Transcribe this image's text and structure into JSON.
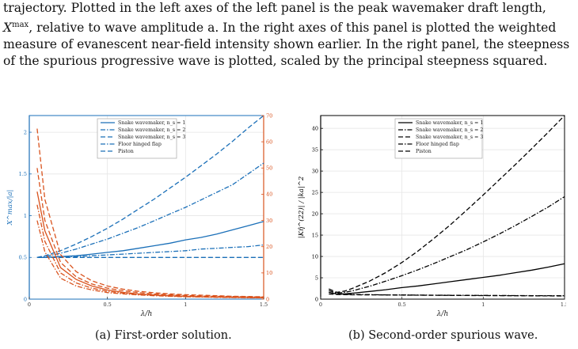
{
  "paragraph": {
    "line1": "trajectory. Plotted in the left axes of the left panel is the peak wavemaker draft length,",
    "line2": "X^max, relative to wave amplitude a. In the right axes of this panel is plotted the weighted",
    "line3": "measure of evanescent near-field intensity shown earlier. In the right panel, the steepness",
    "line4": "of the spurious progressive wave is plotted, scaled by the principal steepness squared."
  },
  "captions": {
    "a": "(a) First-order solution.",
    "b": "(b) Second-order spurious wave."
  },
  "colors": {
    "blue": "#1a6fb8",
    "orange": "#d9531e",
    "black": "#000000"
  },
  "chart_data": [
    {
      "type": "line",
      "xlabel": "λ/h",
      "ylabel_left": "X^max/|a|",
      "ylabel_right": "Σ_{j≥0} |Σ_i η̂_{ji}^{(1)}/k_{j1}| / |a/k|",
      "xlim": [
        0,
        1.5
      ],
      "ylim_left": [
        0,
        2.2
      ],
      "ylim_right": [
        0,
        70
      ],
      "x_ticks": [
        "0",
        "0.5",
        "1",
        "1.5"
      ],
      "y_ticks_left": [
        "0",
        "0.5",
        "1",
        "1.5",
        "2"
      ],
      "y_ticks_right": [
        "0",
        "10",
        "20",
        "30",
        "40",
        "50",
        "60",
        "70"
      ],
      "grid": true,
      "legend_position": "top-right",
      "legend": [
        "Snake wavemaker, n_s = 1",
        "Snake wavemaker, n_s = 2",
        "Snake wavemaker, n_s = 3",
        "Floor hinged flap",
        "Piston"
      ],
      "x": [
        0.05,
        0.1,
        0.2,
        0.3,
        0.4,
        0.5,
        0.6,
        0.7,
        0.8,
        0.9,
        1.0,
        1.1,
        1.2,
        1.3,
        1.4,
        1.5
      ],
      "series": [
        {
          "name": "Snake wavemaker, n_s = 1",
          "axis": "left",
          "dash": "solid",
          "values": [
            0.5,
            0.5,
            0.51,
            0.52,
            0.54,
            0.56,
            0.58,
            0.61,
            0.64,
            0.67,
            0.71,
            0.74,
            0.78,
            0.83,
            0.88,
            0.93
          ]
        },
        {
          "name": "Snake wavemaker, n_s = 2",
          "axis": "left",
          "dash": "dashdot",
          "values": [
            0.5,
            0.51,
            0.55,
            0.6,
            0.66,
            0.72,
            0.79,
            0.86,
            0.94,
            1.02,
            1.1,
            1.19,
            1.28,
            1.37,
            1.5,
            1.63
          ]
        },
        {
          "name": "Snake wavemaker, n_s = 3",
          "axis": "left",
          "dash": "dashed",
          "values": [
            0.5,
            0.52,
            0.58,
            0.66,
            0.75,
            0.85,
            0.96,
            1.08,
            1.2,
            1.33,
            1.46,
            1.6,
            1.74,
            1.89,
            2.05,
            2.2
          ]
        },
        {
          "name": "Floor hinged flap",
          "axis": "left",
          "dash": "dashdot",
          "values": [
            0.5,
            0.5,
            0.51,
            0.51,
            0.52,
            0.53,
            0.54,
            0.55,
            0.56,
            0.57,
            0.58,
            0.6,
            0.61,
            0.62,
            0.63,
            0.65
          ]
        },
        {
          "name": "Piston",
          "axis": "left",
          "dash": "dashed",
          "values": [
            0.5,
            0.5,
            0.5,
            0.5,
            0.5,
            0.5,
            0.5,
            0.5,
            0.5,
            0.5,
            0.5,
            0.5,
            0.5,
            0.5,
            0.5,
            0.5
          ]
        },
        {
          "name": "",
          "axis": "right",
          "dash": "solid",
          "values": [
            41,
            26,
            12,
            7.5,
            5,
            3.5,
            2.6,
            2,
            1.6,
            1.3,
            1.1,
            0.9,
            0.8,
            0.7,
            0.6,
            0.5
          ]
        },
        {
          "name": "",
          "axis": "right",
          "dash": "dashdot",
          "values": [
            30,
            18,
            8,
            5,
            3.5,
            2.5,
            2,
            1.6,
            1.3,
            1.1,
            0.9,
            0.8,
            0.7,
            0.6,
            0.5,
            0.5
          ]
        },
        {
          "name": "",
          "axis": "right",
          "dash": "dashed",
          "values": [
            65,
            38,
            17,
            10.5,
            7,
            5,
            3.8,
            3,
            2.4,
            2,
            1.7,
            1.5,
            1.3,
            1.1,
            1,
            0.9
          ]
        },
        {
          "name": "",
          "axis": "right",
          "dash": "dashdot",
          "values": [
            36,
            22,
            10,
            6.2,
            4.2,
            3,
            2.3,
            1.8,
            1.5,
            1.2,
            1.0,
            0.9,
            0.8,
            0.7,
            0.6,
            0.5
          ]
        },
        {
          "name": "",
          "axis": "right",
          "dash": "dashed",
          "values": [
            50,
            30,
            14,
            8.5,
            5.8,
            4.2,
            3.2,
            2.5,
            2,
            1.7,
            1.4,
            1.2,
            1.1,
            1,
            0.9,
            0.8
          ]
        }
      ]
    },
    {
      "type": "line",
      "xlabel": "λ/h",
      "ylabel": "|Kη̂^(22)| / |ka|^2",
      "xlim": [
        0,
        1.5
      ],
      "ylim": [
        0,
        43
      ],
      "x_ticks": [
        "0",
        "0.5",
        "1",
        "1.5"
      ],
      "y_ticks": [
        "0",
        "5",
        "10",
        "15",
        "20",
        "25",
        "30",
        "35",
        "40"
      ],
      "grid": true,
      "legend_position": "top-right",
      "legend": [
        "Snake wavemaker, n_s = 1",
        "Snake wavemaker, n_s = 2",
        "Snake wavemaker, n_s = 3",
        "Floor hinged flap",
        "Piston"
      ],
      "x": [
        0.05,
        0.1,
        0.15,
        0.2,
        0.3,
        0.4,
        0.5,
        0.6,
        0.7,
        0.8,
        0.9,
        1.0,
        1.1,
        1.2,
        1.3,
        1.4,
        1.5
      ],
      "series": [
        {
          "name": "Snake wavemaker, n_s = 1",
          "dash": "solid",
          "values": [
            1.6,
            1.2,
            1.25,
            1.4,
            1.8,
            2.2,
            2.7,
            3.1,
            3.6,
            4.1,
            4.6,
            5.1,
            5.6,
            6.2,
            6.8,
            7.5,
            8.3
          ]
        },
        {
          "name": "Snake wavemaker, n_s = 2",
          "dash": "dashdot",
          "values": [
            2.0,
            1.4,
            1.6,
            2.0,
            3.0,
            4.2,
            5.5,
            6.9,
            8.4,
            10.0,
            11.6,
            13.4,
            15.3,
            17.3,
            19.4,
            21.6,
            24.0
          ]
        },
        {
          "name": "Snake wavemaker, n_s = 3",
          "dash": "dashed",
          "values": [
            2.4,
            1.6,
            1.9,
            2.6,
            4.2,
            6.2,
            8.6,
            11.3,
            14.3,
            17.5,
            20.9,
            24.4,
            28.0,
            31.6,
            35.3,
            39.1,
            43.0
          ]
        },
        {
          "name": "Floor hinged flap",
          "dash": "dashdot",
          "values": [
            1.6,
            1.2,
            1.15,
            1.1,
            1.05,
            1.0,
            0.98,
            0.95,
            0.93,
            0.91,
            0.89,
            0.87,
            0.85,
            0.84,
            0.82,
            0.81,
            0.8
          ]
        },
        {
          "name": "Piston",
          "dash": "dashed",
          "values": [
            1.2,
            1.1,
            1.05,
            1.02,
            1.0,
            0.98,
            0.95,
            0.93,
            0.9,
            0.88,
            0.86,
            0.84,
            0.82,
            0.8,
            0.78,
            0.76,
            0.74
          ]
        }
      ]
    }
  ]
}
